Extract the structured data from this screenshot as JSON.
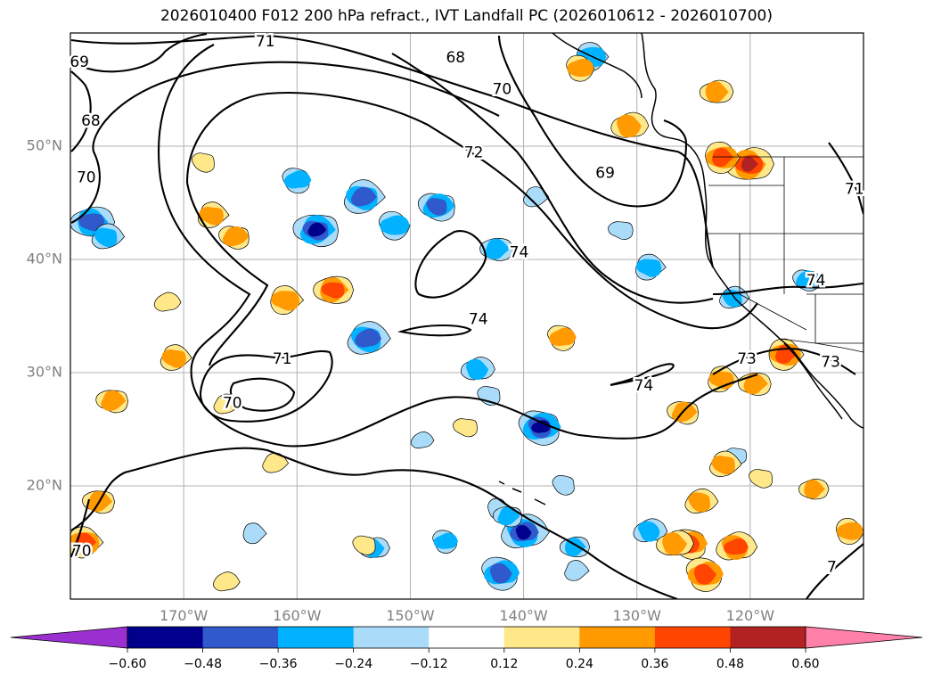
{
  "title": "2026010400 F012 200 hPa refract., IVT Landfall PC (2026010612 - 2026010700)",
  "colors": {
    "background": "#ffffff",
    "grid": "#b0b0b0",
    "contour": "#000000",
    "tick_text": "#808080"
  },
  "map": {
    "projection": "PlateCarree",
    "lon_range": [
      -180,
      -110
    ],
    "lat_range": [
      10,
      60
    ],
    "lat_ticks": [
      {
        "value": 50,
        "label": "50°N"
      },
      {
        "value": 40,
        "label": "40°N"
      },
      {
        "value": 30,
        "label": "30°N"
      },
      {
        "value": 20,
        "label": "20°N"
      }
    ],
    "lon_ticks": [
      {
        "value": -170,
        "label": "170°W"
      },
      {
        "value": -160,
        "label": "160°W"
      },
      {
        "value": -150,
        "label": "150°W"
      },
      {
        "value": -140,
        "label": "140°W"
      },
      {
        "value": -130,
        "label": "130°W"
      },
      {
        "value": -120,
        "label": "120°W"
      }
    ],
    "contour_labels": [
      {
        "text": "71",
        "lon": -162.8,
        "lat": 59.2
      },
      {
        "text": "69",
        "lon": -179.2,
        "lat": 57.4
      },
      {
        "text": "68",
        "lon": -178.2,
        "lat": 52.2
      },
      {
        "text": "70",
        "lon": -178.6,
        "lat": 47.2
      },
      {
        "text": "68",
        "lon": -146.0,
        "lat": 57.8
      },
      {
        "text": "70",
        "lon": -141.9,
        "lat": 55.0
      },
      {
        "text": "72",
        "lon": -144.4,
        "lat": 49.4
      },
      {
        "text": "69",
        "lon": -132.8,
        "lat": 47.6
      },
      {
        "text": "74",
        "lon": -140.4,
        "lat": 40.6
      },
      {
        "text": "74",
        "lon": -144.0,
        "lat": 34.7
      },
      {
        "text": "71",
        "lon": -161.3,
        "lat": 31.2
      },
      {
        "text": "70",
        "lon": -165.7,
        "lat": 27.3
      },
      {
        "text": "74",
        "lon": -129.4,
        "lat": 28.8
      },
      {
        "text": "73",
        "lon": -120.3,
        "lat": 31.2
      },
      {
        "text": "73",
        "lon": -112.9,
        "lat": 30.9
      },
      {
        "text": "74",
        "lon": -114.2,
        "lat": 38.1
      },
      {
        "text": "71",
        "lon": -110.8,
        "lat": 46.2
      },
      {
        "text": "70",
        "lon": -179.0,
        "lat": 14.2
      },
      {
        "text": "7",
        "lon": -112.8,
        "lat": 12.8
      }
    ],
    "positive_blobs": [
      {
        "lon": -120.1,
        "lat": 48.4,
        "v": 0.5
      },
      {
        "lon": -122.5,
        "lat": 49.0,
        "v": 0.4
      },
      {
        "lon": -156.8,
        "lat": 37.3,
        "v": 0.4
      },
      {
        "lon": -161.0,
        "lat": 36.4,
        "v": 0.35
      },
      {
        "lon": -176.3,
        "lat": 27.5,
        "v": 0.3
      },
      {
        "lon": -170.8,
        "lat": 31.3,
        "v": 0.3
      },
      {
        "lon": -165.5,
        "lat": 42.0,
        "v": 0.3
      },
      {
        "lon": -166.3,
        "lat": 27.2,
        "v": 0.2
      },
      {
        "lon": -168.2,
        "lat": 48.6,
        "v": 0.2
      },
      {
        "lon": -171.5,
        "lat": 36.2,
        "v": 0.2
      },
      {
        "lon": -136.6,
        "lat": 33.1,
        "v": 0.3
      },
      {
        "lon": -130.7,
        "lat": 51.8,
        "v": 0.35
      },
      {
        "lon": -135.0,
        "lat": 56.9,
        "v": 0.3
      },
      {
        "lon": -123.0,
        "lat": 54.8,
        "v": 0.3
      },
      {
        "lon": -116.9,
        "lat": 31.6,
        "v": 0.4
      },
      {
        "lon": -119.6,
        "lat": 29.0,
        "v": 0.3
      },
      {
        "lon": -122.5,
        "lat": 29.4,
        "v": 0.3
      },
      {
        "lon": -125.9,
        "lat": 26.5,
        "v": 0.3
      },
      {
        "lon": -122.3,
        "lat": 21.9,
        "v": 0.3
      },
      {
        "lon": -119.0,
        "lat": 20.7,
        "v": 0.2
      },
      {
        "lon": -124.4,
        "lat": 18.6,
        "v": 0.3
      },
      {
        "lon": -125.3,
        "lat": 14.9,
        "v": 0.4
      },
      {
        "lon": -121.3,
        "lat": 14.6,
        "v": 0.4
      },
      {
        "lon": -124.0,
        "lat": 12.2,
        "v": 0.45
      },
      {
        "lon": -126.7,
        "lat": 14.9,
        "v": 0.35
      },
      {
        "lon": -111.2,
        "lat": 16.0,
        "v": 0.3
      },
      {
        "lon": -114.4,
        "lat": 19.7,
        "v": 0.25
      },
      {
        "lon": -178.8,
        "lat": 15.0,
        "v": 0.4
      },
      {
        "lon": -177.5,
        "lat": 18.6,
        "v": 0.3
      },
      {
        "lon": -167.5,
        "lat": 43.9,
        "v": 0.3
      },
      {
        "lon": -145.1,
        "lat": 25.2,
        "v": 0.2
      },
      {
        "lon": -162.0,
        "lat": 22.0,
        "v": 0.2
      },
      {
        "lon": -154.0,
        "lat": 14.8,
        "v": 0.2
      },
      {
        "lon": -166.3,
        "lat": 11.5,
        "v": 0.2
      }
    ],
    "negative_blobs": [
      {
        "lon": -158.3,
        "lat": 42.6,
        "v": -0.5
      },
      {
        "lon": -154.2,
        "lat": 45.5,
        "v": -0.45
      },
      {
        "lon": -147.6,
        "lat": 44.7,
        "v": -0.4
      },
      {
        "lon": -153.8,
        "lat": 33.0,
        "v": -0.45
      },
      {
        "lon": -138.5,
        "lat": 25.2,
        "v": -0.5
      },
      {
        "lon": -140.0,
        "lat": 15.9,
        "v": -0.5
      },
      {
        "lon": -142.0,
        "lat": 12.3,
        "v": -0.45
      },
      {
        "lon": -144.1,
        "lat": 30.3,
        "v": -0.3
      },
      {
        "lon": -151.4,
        "lat": 43.0,
        "v": -0.35
      },
      {
        "lon": -178.1,
        "lat": 43.3,
        "v": -0.45
      },
      {
        "lon": -134.0,
        "lat": 57.9,
        "v": -0.35
      },
      {
        "lon": -142.4,
        "lat": 40.9,
        "v": -0.3
      },
      {
        "lon": -128.9,
        "lat": 39.3,
        "v": -0.3
      },
      {
        "lon": -131.4,
        "lat": 42.6,
        "v": -0.2
      },
      {
        "lon": -139.0,
        "lat": 45.5,
        "v": -0.2
      },
      {
        "lon": -115.0,
        "lat": 38.2,
        "v": -0.25
      },
      {
        "lon": -121.5,
        "lat": 36.6,
        "v": -0.25
      },
      {
        "lon": -136.4,
        "lat": 20.1,
        "v": -0.2
      },
      {
        "lon": -128.9,
        "lat": 16.0,
        "v": -0.3
      },
      {
        "lon": -146.9,
        "lat": 15.1,
        "v": -0.25
      },
      {
        "lon": -153.2,
        "lat": 14.5,
        "v": -0.25
      },
      {
        "lon": -142.2,
        "lat": 18.0,
        "v": -0.2
      },
      {
        "lon": -135.5,
        "lat": 14.6,
        "v": -0.25
      },
      {
        "lon": -163.8,
        "lat": 15.8,
        "v": -0.2
      },
      {
        "lon": -141.4,
        "lat": 17.3,
        "v": -0.25
      },
      {
        "lon": -135.4,
        "lat": 12.5,
        "v": -0.2
      },
      {
        "lon": -121.2,
        "lat": 22.7,
        "v": -0.15
      },
      {
        "lon": -176.8,
        "lat": 42.0,
        "v": -0.3
      },
      {
        "lon": -143.0,
        "lat": 28.0,
        "v": -0.2
      },
      {
        "lon": -149.0,
        "lat": 24.0,
        "v": -0.15
      },
      {
        "lon": -160.0,
        "lat": 47.0,
        "v": -0.3
      }
    ]
  },
  "colorbar": {
    "labels": [
      "−0.60",
      "−0.48",
      "−0.36",
      "−0.24",
      "−0.12",
      "0.12",
      "0.24",
      "0.36",
      "0.48",
      "0.60"
    ],
    "levels": [
      -0.6,
      -0.48,
      -0.36,
      -0.24,
      -0.12,
      0.12,
      0.24,
      0.36,
      0.48,
      0.6
    ],
    "under_color": "#9b30d0",
    "over_color": "#ff80a8",
    "bin_colors": [
      "#00008c",
      "#3059cc",
      "#00b2ff",
      "#aadcfa",
      "#ffffff",
      "#ffe88a",
      "#ff9a00",
      "#ff4500",
      "#b22222"
    ],
    "extend": "both"
  }
}
